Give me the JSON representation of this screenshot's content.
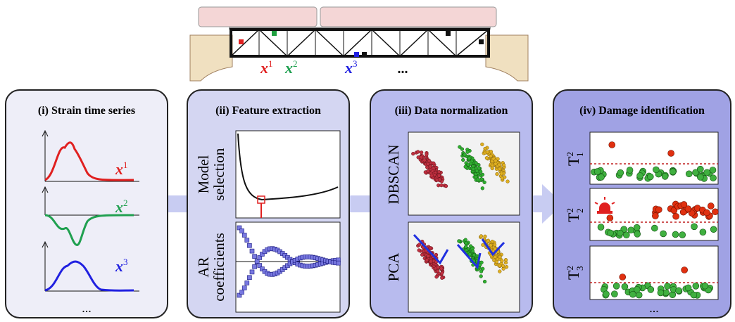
{
  "bridge": {
    "sensors": [
      {
        "symbol": "x",
        "index": "1"
      },
      {
        "symbol": "x",
        "index": "2"
      },
      {
        "symbol": "x",
        "index": "3"
      }
    ],
    "more": "..."
  },
  "panels": [
    {
      "title": "(i) Strain time series",
      "series_labels": [
        {
          "symbol": "x",
          "index": "1"
        },
        {
          "symbol": "x",
          "index": "2"
        },
        {
          "symbol": "x",
          "index": "3"
        }
      ],
      "more": "..."
    },
    {
      "title": "(ii) Feature extraction",
      "plot_labels": [
        [
          "Model",
          "selection"
        ],
        [
          "AR",
          "coefficients"
        ]
      ]
    },
    {
      "title": "(iii) Data normalization",
      "plot_labels": [
        "DBSCAN",
        "PCA"
      ]
    },
    {
      "title": "(iv) Damage identification",
      "plot_labels": [
        {
          "symbol": "T",
          "sup": "2",
          "sub": "1"
        },
        {
          "symbol": "T",
          "sup": "2",
          "sub": "2"
        },
        {
          "symbol": "T",
          "sup": "2",
          "sub": "3"
        }
      ],
      "more": "..."
    }
  ]
}
